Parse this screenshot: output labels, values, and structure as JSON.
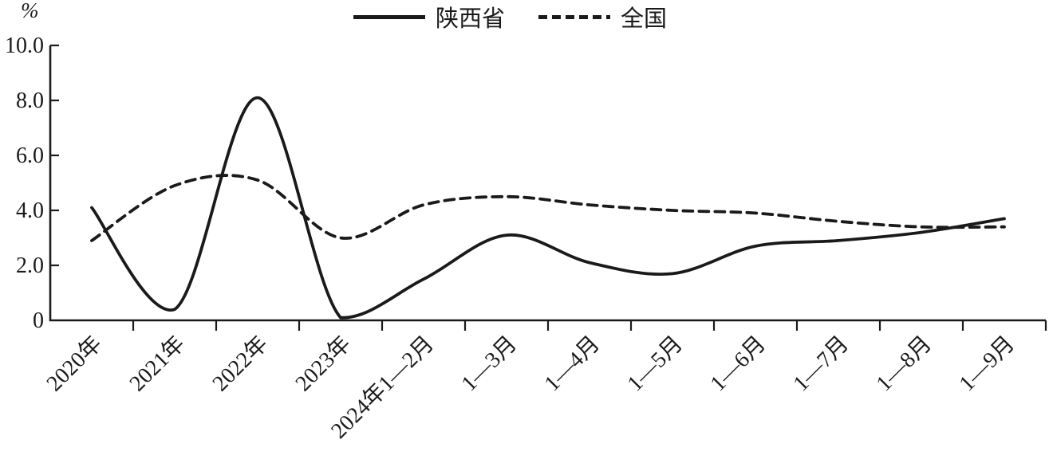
{
  "chart_data": {
    "type": "line",
    "title": "",
    "unit_label": "%",
    "xlabel": "",
    "ylabel": "%",
    "ylim": [
      0,
      10
    ],
    "grid": "off",
    "legend_position": "top-center",
    "line_color": "#1a1a1a",
    "y_ticks": [
      {
        "value": 0,
        "label": "0"
      },
      {
        "value": 2,
        "label": "2.0"
      },
      {
        "value": 4,
        "label": "4.0"
      },
      {
        "value": 6,
        "label": "6.0"
      },
      {
        "value": 8,
        "label": "8.0"
      },
      {
        "value": 10,
        "label": "10.0"
      }
    ],
    "categories": [
      "2020年",
      "2021年",
      "2022年",
      "2023年",
      "2024年1—2月",
      "1—3月",
      "1—4月",
      "1—5月",
      "1—6月",
      "1—7月",
      "1—8月",
      "1—9月"
    ],
    "series": [
      {
        "name": "陕西省",
        "style": "solid",
        "values": [
          4.1,
          0.4,
          8.1,
          0.1,
          1.5,
          3.1,
          2.1,
          1.7,
          2.7,
          2.9,
          3.2,
          3.7
        ]
      },
      {
        "name": "全国",
        "style": "dashed",
        "values": [
          2.9,
          4.9,
          5.1,
          3.0,
          4.2,
          4.5,
          4.2,
          4.0,
          3.9,
          3.6,
          3.4,
          3.4
        ]
      }
    ]
  }
}
